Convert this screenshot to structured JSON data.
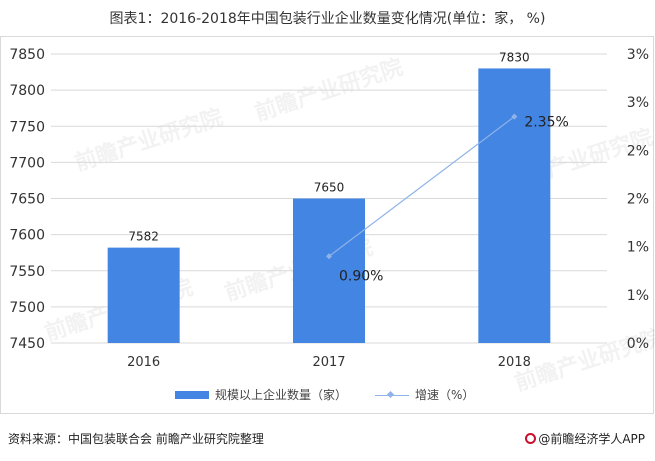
{
  "title": "图表1：2016-2018年中国包装行业企业数量变化情况(单位：家， %)",
  "legend": {
    "bar_label": "规模以上企业数量（家）",
    "line_label": "增速（%）"
  },
  "footer": {
    "source": "资料来源：中国包装联合会 前瞻产业研究院整理",
    "brand": "@前瞻经济学人APP"
  },
  "watermark": "前瞻产业研究院",
  "colors": {
    "bar": "#4285e2",
    "line": "#8fb3e8",
    "grid": "#d9d9d9",
    "axis_text": "#333333"
  },
  "chart_data": {
    "type": "bar",
    "categories": [
      "2016",
      "2017",
      "2018"
    ],
    "series": [
      {
        "name": "规模以上企业数量（家）",
        "type": "bar",
        "axis": "left",
        "values": [
          7582,
          7650,
          7830
        ],
        "labels": [
          "7582",
          "7650",
          "7830"
        ]
      },
      {
        "name": "增速（%）",
        "type": "line",
        "axis": "right",
        "values": [
          null,
          0.9,
          2.35
        ],
        "labels": [
          "",
          "0.90%",
          "2.35%"
        ]
      }
    ],
    "y_left": {
      "min": 7450,
      "max": 7850,
      "ticks": [
        7450,
        7500,
        7550,
        7600,
        7650,
        7700,
        7750,
        7800,
        7850
      ],
      "tick_labels": [
        "7450",
        "7500",
        "7550",
        "7600",
        "7650",
        "7700",
        "7750",
        "7800",
        "7850"
      ]
    },
    "y_right": {
      "min": 0,
      "max": 3,
      "ticks": [
        0,
        0.5,
        1,
        1.5,
        2,
        2.5,
        3
      ],
      "tick_labels": [
        "0%",
        "1%",
        "1%",
        "2%",
        "2%",
        "3%",
        "3%"
      ]
    },
    "grid": true,
    "legend_position": "bottom"
  }
}
